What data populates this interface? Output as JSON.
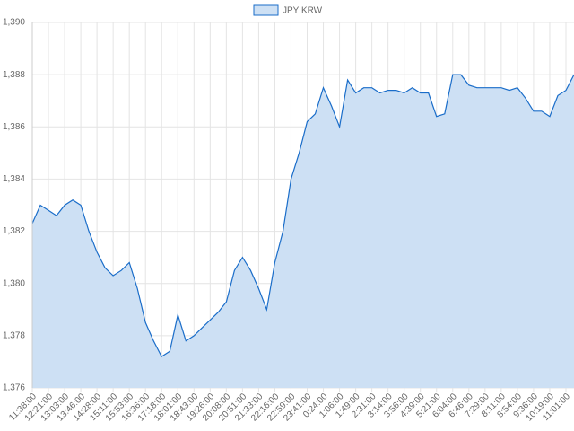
{
  "chart_data": {
    "type": "line",
    "series": [
      {
        "name": "JPY KRW",
        "color": "#1a6dc9",
        "fill": "#cde0f4",
        "values": [
          1382.3,
          1383.0,
          1382.8,
          1382.6,
          1383.0,
          1383.2,
          1383.0,
          1382.0,
          1381.2,
          1380.6,
          1380.3,
          1380.5,
          1380.8,
          1379.8,
          1378.5,
          1377.8,
          1377.2,
          1377.4,
          1378.8,
          1377.8,
          1378.0,
          1378.3,
          1378.6,
          1378.9,
          1379.3,
          1380.5,
          1381.0,
          1380.5,
          1379.8,
          1379.0,
          1380.8,
          1382.0,
          1384.0,
          1385.0,
          1386.2,
          1386.5,
          1387.5,
          1386.8,
          1386.0,
          1387.8,
          1387.3,
          1387.5,
          1387.5,
          1387.3,
          1387.4,
          1387.4,
          1387.3,
          1387.5,
          1387.3,
          1387.3,
          1386.4,
          1386.5,
          1388.0,
          1388.0,
          1387.6,
          1387.5,
          1387.5,
          1387.5,
          1387.5,
          1387.4,
          1387.5,
          1387.1,
          1386.6,
          1386.6,
          1386.4,
          1387.2,
          1387.4,
          1388.0
        ]
      }
    ],
    "categories": [
      "11:38:00",
      null,
      "12:21:00",
      null,
      "13:03:00",
      null,
      "13:46:00",
      null,
      "14:28:00",
      null,
      "15:11:00",
      null,
      "15:53:00",
      null,
      "16:36:00",
      null,
      "17:18:00",
      null,
      "18:01:00",
      null,
      "18:43:00",
      null,
      "19:26:00",
      null,
      "20:08:00",
      null,
      "20:51:00",
      null,
      "21:33:00",
      null,
      "22:16:00",
      null,
      "22:59:00",
      null,
      "23:41:00",
      null,
      "0:24:00",
      null,
      "1:06:00",
      null,
      "1:49:00",
      null,
      "2:31:00",
      null,
      "3:14:00",
      null,
      "3:56:00",
      null,
      "4:39:00",
      null,
      "5:21:00",
      null,
      "6:04:00",
      null,
      "6:46:00",
      null,
      "7:29:00",
      null,
      "8:11:00",
      null,
      "8:54:00",
      null,
      "9:36:00",
      null,
      "10:19:00",
      null,
      "11:01:00",
      null
    ],
    "ylim": [
      1376,
      1390
    ],
    "yticks": [
      {
        "value": 1376,
        "label": "1,376"
      },
      {
        "value": 1378,
        "label": "1,378"
      },
      {
        "value": 1380,
        "label": "1,380"
      },
      {
        "value": 1382,
        "label": "1,382"
      },
      {
        "value": 1384,
        "label": "1,384"
      },
      {
        "value": 1386,
        "label": "1,386"
      },
      {
        "value": 1388,
        "label": "1,388"
      },
      {
        "value": 1390,
        "label": "1,390"
      }
    ],
    "grid": true,
    "legend": "top"
  }
}
